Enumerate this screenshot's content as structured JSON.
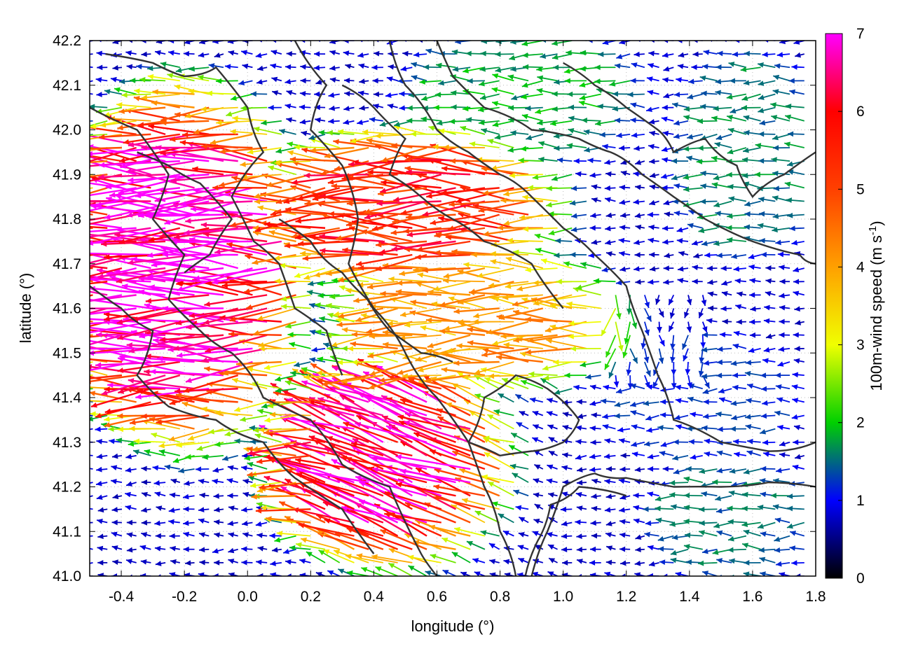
{
  "chart_data": {
    "type": "vector-field",
    "xlabel": "longitude (°)",
    "ylabel": "latitude (°)",
    "colorbar_label": "100m-wind speed (m s",
    "colorbar_label_sup": "-1",
    "colorbar_label_end": ")",
    "xlim": [
      -0.5,
      1.8
    ],
    "ylim": [
      41.0,
      42.2
    ],
    "x_ticks": [
      -0.4,
      -0.2,
      0.0,
      0.2,
      0.4,
      0.6,
      0.8,
      1.0,
      1.2,
      1.4,
      1.6,
      1.8
    ],
    "x_tick_labels": [
      "-0.4",
      "-0.2",
      "0.0",
      "0.2",
      "0.4",
      "0.6",
      "0.8",
      "1.0",
      "1.2",
      "1.4",
      "1.6",
      "1.8"
    ],
    "y_ticks": [
      41.0,
      41.1,
      41.2,
      41.3,
      41.4,
      41.5,
      41.6,
      41.7,
      41.8,
      41.9,
      42.0,
      42.1,
      42.2
    ],
    "y_tick_labels": [
      "41.0",
      "41.1",
      "41.2",
      "41.3",
      "41.4",
      "41.5",
      "41.6",
      "41.7",
      "41.8",
      "41.9",
      "42.0",
      "42.1",
      "42.2"
    ],
    "colorbar_range": [
      0,
      7
    ],
    "colorbar_ticks": [
      0,
      1,
      2,
      3,
      4,
      5,
      6,
      7
    ],
    "colorbar_tick_labels": [
      "0",
      "1",
      "2",
      "3",
      "4",
      "5",
      "6",
      "7"
    ],
    "colormap": [
      "#000000",
      "#0000ff",
      "#00d000",
      "#f0ff00",
      "#ffa000",
      "#ff4000",
      "#ff0000",
      "#ff00ff"
    ],
    "grid": true,
    "contour_color": "#333333",
    "speed_regions": [
      {
        "lon": [
          -0.5,
          0.15
        ],
        "lat": [
          41.3,
          42.1
        ],
        "speed": 7.0
      },
      {
        "lon": [
          0.15,
          0.8
        ],
        "lat": [
          41.05,
          41.45
        ],
        "speed": 6.5
      },
      {
        "lon": [
          0.1,
          1.0
        ],
        "lat": [
          41.7,
          41.95
        ],
        "speed": 5.5
      },
      {
        "lon": [
          0.3,
          1.2
        ],
        "lat": [
          41.45,
          41.7
        ],
        "speed": 4.0
      },
      {
        "lon": [
          1.3,
          1.8
        ],
        "lat": [
          41.0,
          41.25
        ],
        "speed": 1.5
      },
      {
        "lon": [
          1.1,
          1.8
        ],
        "lat": [
          41.25,
          41.55
        ],
        "speed": 1.2
      },
      {
        "lon": [
          0.5,
          1.3
        ],
        "lat": [
          41.95,
          42.2
        ],
        "speed": 1.8
      },
      {
        "lon": [
          1.4,
          1.8
        ],
        "lat": [
          41.7,
          42.2
        ],
        "speed": 1.6
      }
    ]
  }
}
